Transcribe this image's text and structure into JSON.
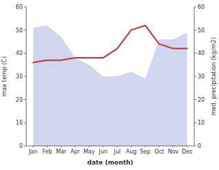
{
  "chart_data": {
    "type": "line",
    "categories": [
      "Jan",
      "Feb",
      "Mar",
      "Apr",
      "May",
      "Jun",
      "Jul",
      "Aug",
      "Sep",
      "Oct",
      "Nov",
      "Dec"
    ],
    "xlabel": "date (month)",
    "ylabel": "max temp (C)",
    "y2label": "med. precipitation (kg/m2)",
    "series": [
      {
        "type": "area",
        "axis": "y2",
        "color": "#aab4e0",
        "values": [
          51,
          52,
          47,
          38,
          35,
          30,
          30,
          32,
          29,
          46,
          46,
          49
        ]
      },
      {
        "type": "line",
        "color": "#c83030",
        "values": [
          36,
          37,
          37,
          38,
          38,
          38,
          42,
          50,
          52,
          44,
          42,
          42
        ]
      }
    ],
    "ylim": [
      0,
      60
    ],
    "yticks": [
      0,
      10,
      20,
      30,
      40,
      50,
      60
    ],
    "y2lim": [
      0,
      60
    ],
    "y2ticks": [
      0,
      10,
      20,
      30,
      40,
      50,
      60
    ]
  }
}
